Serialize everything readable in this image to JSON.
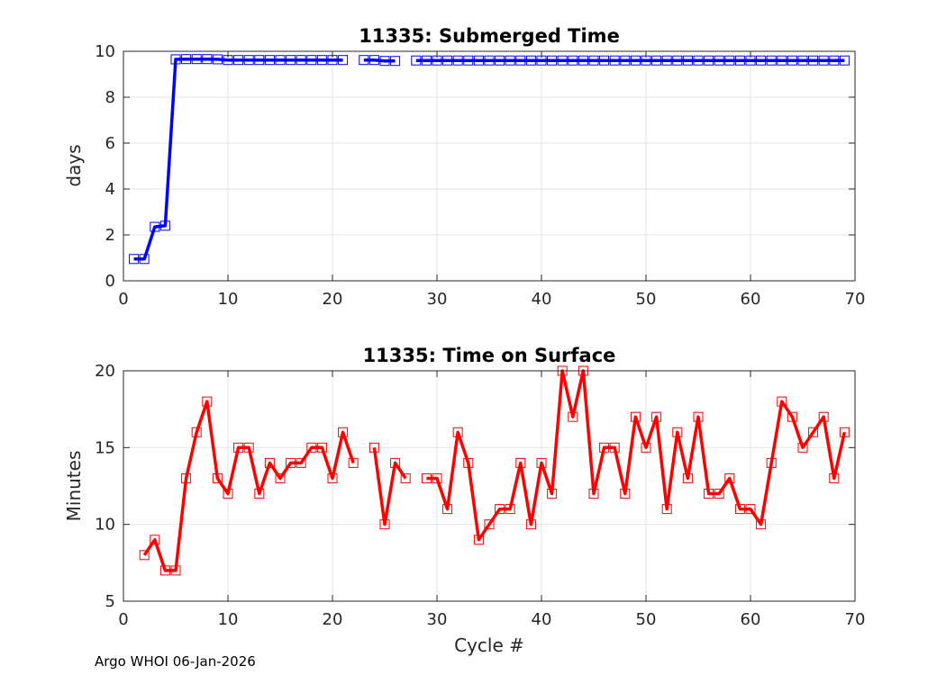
{
  "footer": "Argo WHOI 06-Jan-2026",
  "chart_data": [
    {
      "type": "line",
      "title": "11335: Submerged Time",
      "xlabel": "",
      "ylabel": "days",
      "xlim": [
        0,
        70
      ],
      "ylim": [
        0,
        10
      ],
      "xticks": [
        "0",
        "10",
        "20",
        "30",
        "40",
        "50",
        "60",
        "70"
      ],
      "yticks": [
        "0",
        "2",
        "4",
        "6",
        "8",
        "10"
      ],
      "grid": true,
      "marker": "square",
      "color": "#0000ff",
      "series": [
        {
          "x": [
            1,
            2,
            3,
            4,
            5,
            6,
            7,
            8,
            9,
            10,
            11,
            12,
            13,
            14,
            15,
            16,
            17,
            18,
            19,
            20,
            21,
            22,
            23,
            24,
            25,
            26,
            27,
            28,
            29,
            30,
            31,
            32,
            33,
            34,
            35,
            36,
            37,
            38,
            39,
            40,
            41,
            42,
            43,
            44,
            45,
            46,
            47,
            48,
            49,
            50,
            51,
            52,
            53,
            54,
            55,
            56,
            57,
            58,
            59,
            60,
            61,
            62,
            63,
            64,
            65,
            66,
            67,
            68,
            69
          ],
          "y": [
            0.95,
            0.95,
            2.35,
            2.4,
            9.65,
            9.66,
            9.66,
            9.66,
            9.65,
            9.62,
            9.62,
            9.62,
            9.62,
            9.62,
            9.62,
            9.62,
            9.62,
            9.62,
            9.62,
            9.62,
            9.62,
            null,
            9.62,
            9.62,
            9.58,
            9.58,
            null,
            9.6,
            9.6,
            9.6,
            9.6,
            9.6,
            9.6,
            9.6,
            9.6,
            9.6,
            9.6,
            9.6,
            9.6,
            9.6,
            9.6,
            9.6,
            9.6,
            9.6,
            9.6,
            9.6,
            9.6,
            9.6,
            9.6,
            9.6,
            9.6,
            9.6,
            9.6,
            9.6,
            9.6,
            9.6,
            9.6,
            9.6,
            9.6,
            9.6,
            9.6,
            9.6,
            9.6,
            9.6,
            9.6,
            9.6,
            9.6,
            9.6,
            9.6
          ]
        }
      ]
    },
    {
      "type": "line",
      "title": "11335: Time on Surface",
      "xlabel": "Cycle #",
      "ylabel": "Minutes",
      "xlim": [
        0,
        70
      ],
      "ylim": [
        5,
        20
      ],
      "xticks": [
        "0",
        "10",
        "20",
        "30",
        "40",
        "50",
        "60",
        "70"
      ],
      "yticks": [
        "5",
        "10",
        "15",
        "20"
      ],
      "grid": true,
      "marker": "square",
      "color": "#ff0000",
      "series": [
        {
          "x": [
            2,
            3,
            4,
            5,
            6,
            7,
            8,
            9,
            10,
            11,
            12,
            13,
            14,
            15,
            16,
            17,
            18,
            19,
            20,
            21,
            22,
            23,
            24,
            25,
            26,
            27,
            28,
            29,
            30,
            31,
            32,
            33,
            34,
            35,
            36,
            37,
            38,
            39,
            40,
            41,
            42,
            43,
            44,
            45,
            46,
            47,
            48,
            49,
            50,
            51,
            52,
            53,
            54,
            55,
            56,
            57,
            58,
            59,
            60,
            61,
            62,
            63,
            64,
            65,
            66,
            67,
            68,
            69
          ],
          "y": [
            8,
            9,
            7,
            7,
            13,
            16,
            18,
            13,
            12,
            15,
            15,
            12,
            14,
            13,
            14,
            14,
            15,
            15,
            13,
            16,
            14,
            null,
            15,
            10,
            14,
            13,
            null,
            13,
            13,
            11,
            16,
            14,
            9,
            10,
            11,
            11,
            14,
            10,
            14,
            12,
            20,
            17,
            20,
            12,
            15,
            15,
            12,
            17,
            15,
            17,
            11,
            16,
            13,
            17,
            12,
            12,
            13,
            11,
            11,
            10,
            14,
            18,
            17,
            15,
            16,
            17,
            13,
            16
          ]
        }
      ]
    }
  ]
}
